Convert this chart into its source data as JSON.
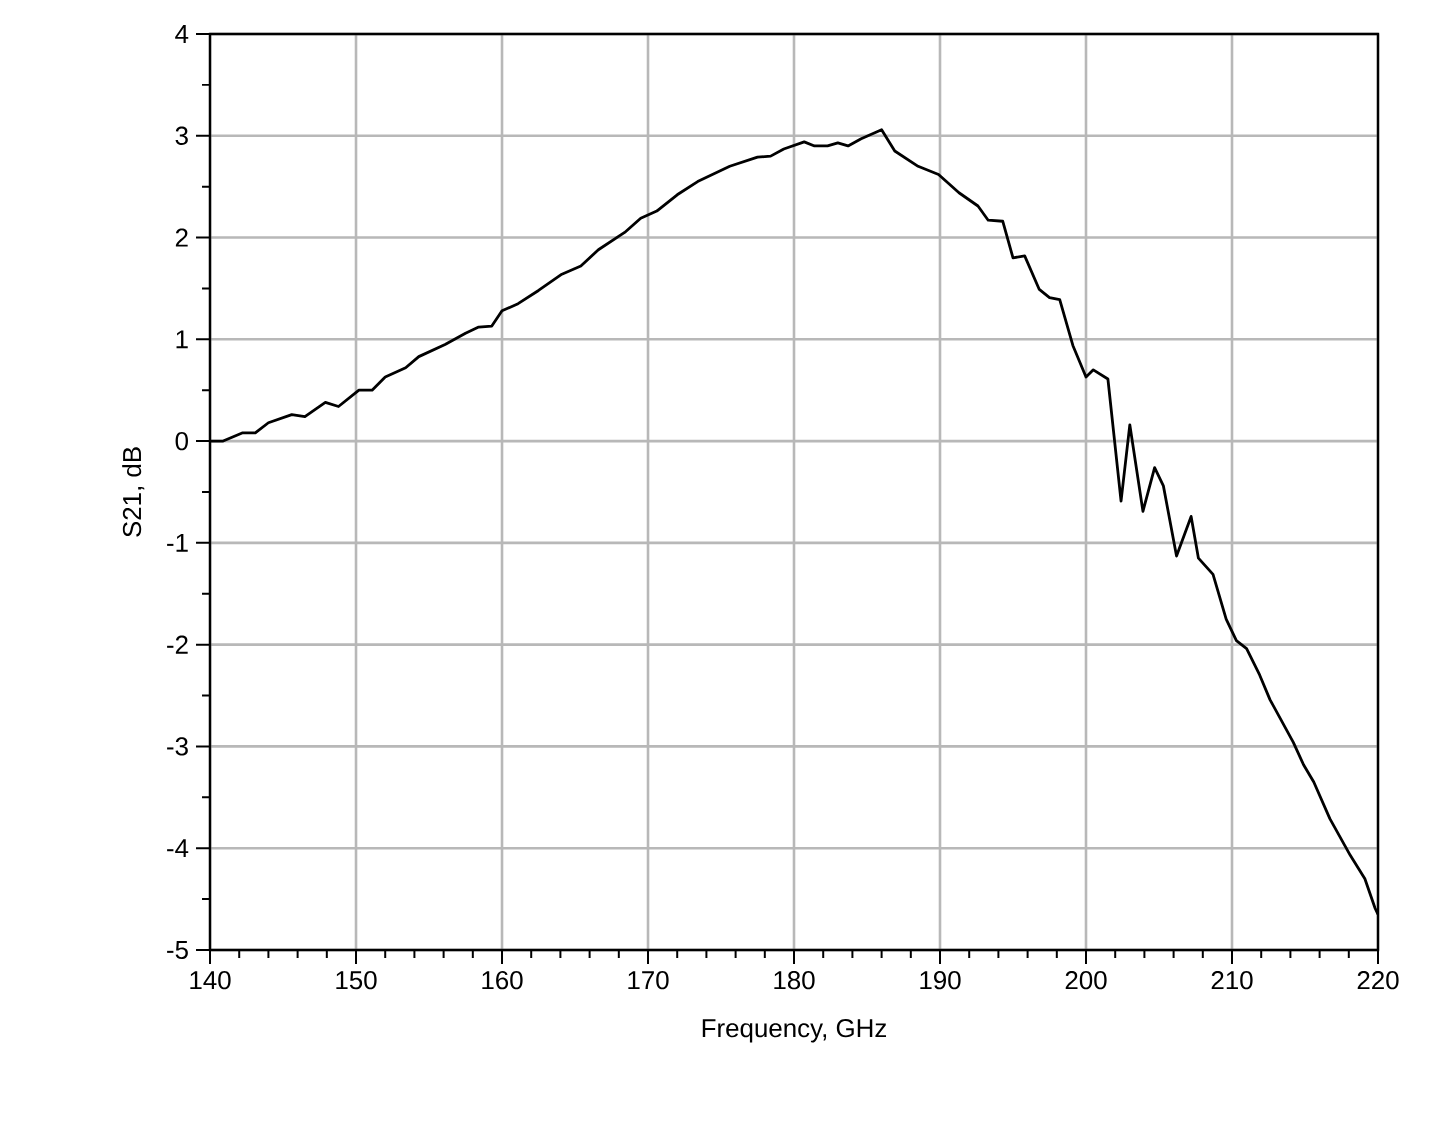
{
  "chart_data": {
    "type": "line",
    "xlabel": "Frequency, GHz",
    "ylabel": "S21, dB",
    "x": [
      140,
      140.9,
      142.2,
      143.1,
      144.0,
      145.6,
      146.5,
      147.9,
      148.8,
      150.2,
      151.1,
      152.0,
      153.4,
      154.3,
      156.1,
      157.5,
      158.4,
      159.3,
      160.0,
      161.1,
      162.5,
      164.1,
      165.4,
      166.6,
      168.4,
      169.5,
      170.6,
      172.0,
      173.4,
      175.6,
      177.5,
      178.4,
      179.3,
      180.7,
      181.4,
      182.3,
      183.0,
      183.7,
      184.6,
      186.0,
      186.9,
      188.5,
      189.9,
      191.3,
      192.6,
      193.3,
      194.3,
      195.0,
      195.8,
      196.8,
      197.5,
      198.2,
      199.1,
      200.0,
      200.5,
      201.5,
      202.4,
      203.0,
      203.9,
      204.7,
      205.3,
      206.2,
      207.2,
      207.7,
      208.7,
      209.6,
      210.3,
      211.0,
      211.9,
      212.6,
      214.2,
      214.9,
      215.6,
      216.7,
      218.1,
      219.1,
      219.8,
      220
    ],
    "series": [
      {
        "color": "#000000",
        "values": [
          0,
          0,
          0.08,
          0.08,
          0.18,
          0.26,
          0.24,
          0.38,
          0.34,
          0.5,
          0.5,
          0.63,
          0.72,
          0.83,
          0.95,
          1.06,
          1.12,
          1.13,
          1.28,
          1.35,
          1.48,
          1.64,
          1.72,
          1.88,
          2.05,
          2.19,
          2.26,
          2.42,
          2.55,
          2.7,
          2.79,
          2.8,
          2.87,
          2.94,
          2.9,
          2.9,
          2.93,
          2.9,
          2.97,
          3.06,
          2.85,
          2.7,
          2.62,
          2.44,
          2.31,
          2.17,
          2.16,
          1.8,
          1.82,
          1.49,
          1.41,
          1.39,
          0.94,
          0.63,
          0.7,
          0.61,
          -0.59,
          0.16,
          -0.69,
          -0.26,
          -0.44,
          -1.13,
          -0.74,
          -1.15,
          -1.31,
          -1.75,
          -1.96,
          -2.04,
          -2.3,
          -2.54,
          -2.96,
          -3.18,
          -3.35,
          -3.71,
          -4.07,
          -4.3,
          -4.59,
          -4.65
        ]
      }
    ],
    "xlim": [
      140,
      220
    ],
    "xticks": [
      140,
      150,
      160,
      170,
      180,
      190,
      200,
      210,
      220
    ],
    "ylim": [
      -5,
      4
    ],
    "yticks": [
      -5,
      -4,
      -3,
      -2,
      -1,
      0,
      1,
      2,
      3,
      4
    ],
    "grid": true,
    "marker": "none",
    "line_style": "solid"
  }
}
